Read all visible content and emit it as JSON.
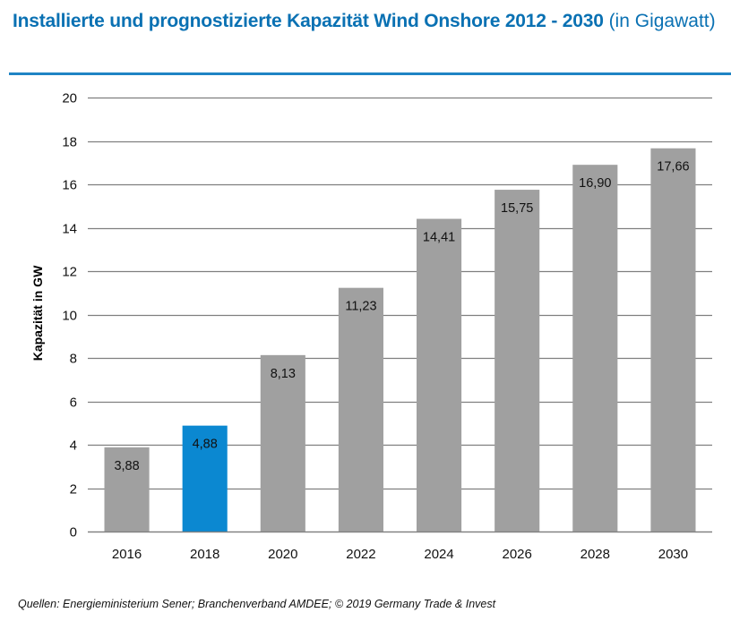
{
  "title": {
    "bold": "Installierte und prognostizierte Kapazität Wind Onshore 2012 - 2030",
    "normal": " (in Gigawatt)"
  },
  "source": "Quellen: Energieministerium Sener; Branchenverband AMDEE; © 2019  Germany Trade & Invest",
  "colors": {
    "title": "#0a71b3",
    "rule": "#1f84c4",
    "bar_default": "#a0a0a0",
    "bar_highlight": "#0b88d1",
    "gridline": "#7f7f7f"
  },
  "chart_data": {
    "type": "bar",
    "title": "Installierte und prognostizierte Kapazität Wind Onshore 2012 - 2030 (in Gigawatt)",
    "xlabel": "",
    "ylabel": "Kapazität in GW",
    "categories": [
      "2016",
      "2018",
      "2020",
      "2022",
      "2024",
      "2026",
      "2028",
      "2030"
    ],
    "values": [
      3.88,
      4.88,
      8.13,
      11.23,
      14.41,
      15.75,
      16.9,
      17.66
    ],
    "data_labels": [
      "3,88",
      "4,88",
      "8,13",
      "11,23",
      "14,41",
      "15,75",
      "16,90",
      "17,66"
    ],
    "highlight_category": "2018",
    "ylim": [
      0,
      20
    ],
    "yticks": [
      0,
      2,
      4,
      6,
      8,
      10,
      12,
      14,
      16,
      18,
      20
    ],
    "grid": true,
    "legend": "none"
  }
}
